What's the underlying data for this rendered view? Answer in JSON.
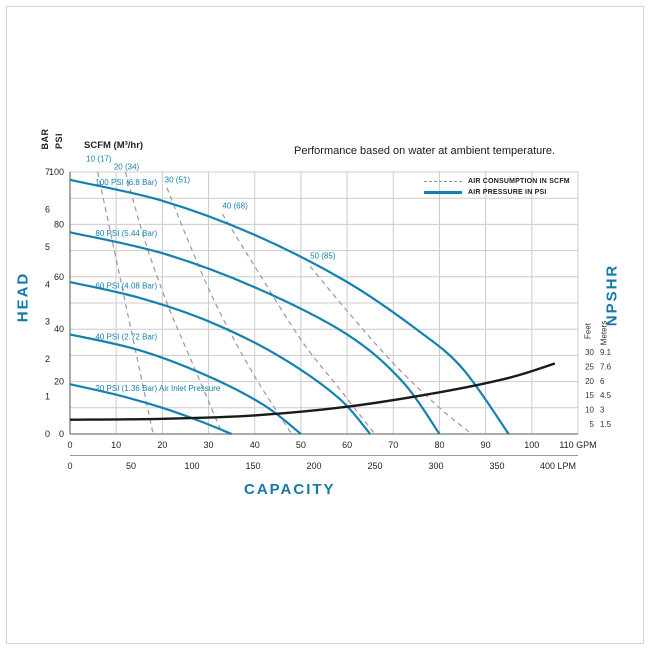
{
  "chart_data": {
    "type": "line",
    "title": "Performance based on water at ambient temperature.",
    "scfm_header": "SCFM (M³/hr)",
    "legend": {
      "position": "top-right",
      "items": [
        {
          "label": "AIR CONSUMPTION IN SCFM",
          "style": "dashed",
          "color": "#999999"
        },
        {
          "label": "AIR PRESSURE IN PSI",
          "style": "solid",
          "color": "#1581b0"
        }
      ]
    },
    "colors": {
      "pressure_curve": "#1581b0",
      "consumption_curve": "#999999",
      "npshr_curve": "#1a1a1a",
      "accent_text": "#1478a8",
      "grid": "#cccccc",
      "axis": "#7a7a7a",
      "tick_text": "#222222"
    },
    "axes": {
      "y_left": {
        "head_label": "HEAD",
        "psi_label": "PSI",
        "bar_label": "BAR",
        "psi_range": [
          0,
          100
        ],
        "psi_ticks": [
          0,
          20,
          40,
          60,
          80,
          100
        ],
        "bar_ticks": [
          0,
          1,
          2,
          3,
          4,
          5,
          6,
          7
        ],
        "grid_step_psi": 10
      },
      "x_bottom": {
        "capacity_label": "CAPACITY",
        "gpm_range": [
          0,
          110
        ],
        "gpm_ticks": [
          0,
          10,
          20,
          30,
          40,
          50,
          60,
          70,
          80,
          90,
          100
        ],
        "gpm_end_label": "110 GPM",
        "gpm_end_value": 110,
        "lpm_ticks": [
          0,
          50,
          100,
          150,
          200,
          250,
          300,
          350
        ],
        "lpm_end_label": "400 LPM",
        "lpm_end_value": 400,
        "lpm_per_gpm": 3.785,
        "grid_step_gpm": 10
      },
      "y_right": {
        "npshr_label": "NPSHR",
        "feet_label": "Feet",
        "meters_label": "Meters",
        "feet_ticks": [
          30,
          25,
          20,
          15,
          10,
          5
        ],
        "meters_ticks": [
          "9.1",
          "7.6",
          "6",
          "4.5",
          "3",
          "1.5"
        ],
        "feet_range": [
          5,
          30
        ]
      }
    },
    "pressure_series": [
      {
        "label": "100 PSI (6.8 Bar)",
        "label_at": [
          5.5,
          95
        ],
        "gpm": [
          0,
          20,
          40,
          60,
          75,
          85,
          95
        ],
        "psi": [
          97,
          89,
          76,
          58,
          40,
          25,
          0
        ]
      },
      {
        "label": "80 PSI (5.44 Bar)",
        "label_at": [
          5.5,
          75.5
        ],
        "gpm": [
          0,
          20,
          40,
          60,
          72,
          80
        ],
        "psi": [
          77,
          69,
          56,
          38,
          20,
          0
        ]
      },
      {
        "label": "60 PSI (4.08 Bar)",
        "label_at": [
          5.5,
          55.5
        ],
        "gpm": [
          0,
          15,
          30,
          45,
          58,
          65
        ],
        "psi": [
          58,
          52,
          43,
          30,
          14,
          0
        ]
      },
      {
        "label": "40 PSI (2.72 Bar)",
        "label_at": [
          5.5,
          36
        ],
        "gpm": [
          0,
          15,
          30,
          42,
          50
        ],
        "psi": [
          38,
          32,
          22,
          11,
          0
        ]
      },
      {
        "label": "20 PSI (1.36 Bar) Air Inlet Pressure",
        "label_at": [
          5.5,
          16.5
        ],
        "gpm": [
          0,
          10,
          20,
          28,
          35
        ],
        "psi": [
          19,
          15,
          10,
          5,
          0
        ]
      }
    ],
    "consumption_series": [
      {
        "label": "10 (17)",
        "label_at": [
          3.5,
          104
        ],
        "gpm": [
          6,
          9,
          12,
          15,
          18
        ],
        "psi": [
          100,
          75,
          50,
          25,
          0
        ]
      },
      {
        "label": "20 (34)",
        "label_at": [
          9.5,
          101
        ],
        "gpm": [
          12,
          16,
          21,
          27,
          33
        ],
        "psi": [
          100,
          75,
          50,
          25,
          0
        ]
      },
      {
        "label": "30 (51)",
        "label_at": [
          20.5,
          96
        ],
        "gpm": [
          21,
          26,
          32,
          40,
          48
        ],
        "psi": [
          94,
          72,
          48,
          22,
          0
        ]
      },
      {
        "label": "40 (68)",
        "label_at": [
          33,
          86
        ],
        "gpm": [
          33,
          40,
          50,
          58,
          66
        ],
        "psi": [
          84,
          64,
          36,
          18,
          0
        ]
      },
      {
        "label": "50 (85)",
        "label_at": [
          52,
          67
        ],
        "gpm": [
          52,
          60,
          70,
          80,
          87
        ],
        "psi": [
          64,
          47,
          27,
          10,
          0
        ]
      }
    ],
    "npshr_series": {
      "gpm": [
        0,
        20,
        40,
        60,
        80,
        95,
        105
      ],
      "feet": [
        6.5,
        6.8,
        8,
        11,
        16,
        21,
        26
      ]
    }
  }
}
